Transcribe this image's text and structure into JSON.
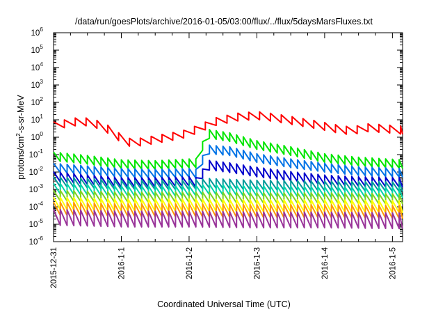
{
  "chart_data": {
    "type": "line",
    "title": "/data/run/goesPlots/archive/2016-01-05/03:00/flux/../flux/5daysMarsFluxes.txt",
    "xlabel": "Coordinated Universal Time (UTC)",
    "ylabel_pre": "protons/cm",
    "ylabel_sup": "2",
    "ylabel_post": "-s-sr-MeV",
    "yscale": "log",
    "ylim_exp": [
      -6,
      6
    ],
    "ytick_base": "10",
    "xlim_days": [
      0,
      5.15
    ],
    "xticks": [
      {
        "label": "2015-12-31",
        "day": 0
      },
      {
        "label": "2016-1-1",
        "day": 1
      },
      {
        "label": "2016-1-2",
        "day": 2
      },
      {
        "label": "2016-1-3",
        "day": 3
      },
      {
        "label": "2016-1-4",
        "day": 4
      },
      {
        "label": "2016-1-5",
        "day": 5
      }
    ],
    "grid": false,
    "legend": "none",
    "series": [
      {
        "color": "#ff0000",
        "period": 0.16,
        "amp": 0.45,
        "env": [
          [
            0,
            0.66
          ],
          [
            0.38,
            0.92
          ],
          [
            0.55,
            0.85
          ],
          [
            0.75,
            0.6
          ],
          [
            0.95,
            0.05
          ],
          [
            1.15,
            -0.35
          ],
          [
            1.4,
            -0.2
          ],
          [
            1.7,
            0
          ],
          [
            1.95,
            0.2
          ],
          [
            2.15,
            0.5
          ],
          [
            2.4,
            0.9
          ],
          [
            2.7,
            1.15
          ],
          [
            3.0,
            1.25
          ],
          [
            3.3,
            1.1
          ],
          [
            3.6,
            0.9
          ],
          [
            3.9,
            0.7
          ],
          [
            4.15,
            0.5
          ],
          [
            4.4,
            0.35
          ],
          [
            4.6,
            0.55
          ],
          [
            4.85,
            0.5
          ],
          [
            5.15,
            0.4
          ]
        ]
      },
      {
        "color": "#00e600",
        "period": 0.1,
        "amp": 0.5,
        "env": [
          [
            0,
            -1.1
          ],
          [
            0.5,
            -1.3
          ],
          [
            1.0,
            -1.55
          ],
          [
            1.5,
            -1.6
          ],
          [
            2.0,
            -1.5
          ],
          [
            2.1,
            -1.5
          ],
          [
            2.2,
            -0.5
          ],
          [
            2.28,
            0.2
          ],
          [
            2.6,
            0
          ],
          [
            3.0,
            -0.45
          ],
          [
            3.5,
            -0.8
          ],
          [
            4.0,
            -1.2
          ],
          [
            4.5,
            -1.4
          ],
          [
            5.15,
            -1.55
          ]
        ]
      },
      {
        "color": "#0073e6",
        "period": 0.1,
        "amp": 0.5,
        "env": [
          [
            0,
            -1.75
          ],
          [
            0.5,
            -1.9
          ],
          [
            1.0,
            -2.05
          ],
          [
            1.5,
            -2.1
          ],
          [
            2.0,
            -2.05
          ],
          [
            2.1,
            -2.1
          ],
          [
            2.2,
            -1.3
          ],
          [
            2.28,
            -0.7
          ],
          [
            2.6,
            -0.8
          ],
          [
            3.0,
            -1.2
          ],
          [
            3.5,
            -1.5
          ],
          [
            4.0,
            -1.75
          ],
          [
            4.5,
            -1.95
          ],
          [
            5.15,
            -2.05
          ]
        ]
      },
      {
        "color": "#0000cc",
        "period": 0.1,
        "amp": 0.55,
        "env": [
          [
            0,
            -2.25
          ],
          [
            0.5,
            -2.45
          ],
          [
            1.0,
            -2.6
          ],
          [
            1.5,
            -2.6
          ],
          [
            2.0,
            -2.55
          ],
          [
            2.1,
            -2.6
          ],
          [
            2.2,
            -2.1
          ],
          [
            2.28,
            -1.6
          ],
          [
            2.6,
            -1.75
          ],
          [
            3.0,
            -2.0
          ],
          [
            3.5,
            -2.25
          ],
          [
            4.0,
            -2.45
          ],
          [
            4.5,
            -2.55
          ],
          [
            5.15,
            -2.6
          ]
        ]
      },
      {
        "color": "#009999",
        "period": 0.1,
        "amp": 0.55,
        "env": [
          [
            0,
            -2.55
          ],
          [
            1.0,
            -2.75
          ],
          [
            2.0,
            -2.75
          ],
          [
            2.3,
            -2.65
          ],
          [
            3.0,
            -2.75
          ],
          [
            4.0,
            -2.8
          ],
          [
            5.15,
            -2.85
          ]
        ]
      },
      {
        "color": "#00d4aa",
        "period": 0.1,
        "amp": 0.6,
        "env": [
          [
            0,
            -2.95
          ],
          [
            1.0,
            -3.1
          ],
          [
            2.0,
            -3.1
          ],
          [
            2.3,
            -3.0
          ],
          [
            3.0,
            -3.1
          ],
          [
            4.0,
            -3.15
          ],
          [
            5.15,
            -3.2
          ]
        ]
      },
      {
        "color": "#7ed321",
        "period": 0.1,
        "amp": 0.6,
        "env": [
          [
            0,
            -3.35
          ],
          [
            1.0,
            -3.45
          ],
          [
            2.0,
            -3.45
          ],
          [
            3.0,
            -3.5
          ],
          [
            4.0,
            -3.5
          ],
          [
            5.15,
            -3.55
          ]
        ]
      },
      {
        "color": "#ffff00",
        "period": 0.1,
        "amp": 0.7,
        "env": [
          [
            0,
            -3.8
          ],
          [
            1.0,
            -3.9
          ],
          [
            2.0,
            -3.9
          ],
          [
            3.0,
            -3.95
          ],
          [
            4.0,
            -3.95
          ],
          [
            5.15,
            -4.0
          ]
        ]
      },
      {
        "color": "#ff9900",
        "period": 0.1,
        "amp": 0.75,
        "env": [
          [
            0,
            -4.1
          ],
          [
            1.0,
            -4.2
          ],
          [
            2.0,
            -4.2
          ],
          [
            3.0,
            -4.25
          ],
          [
            4.0,
            -4.25
          ],
          [
            5.15,
            -4.3
          ]
        ]
      },
      {
        "color": "#993399",
        "period": 0.1,
        "amp": 0.9,
        "env": [
          [
            0,
            -4.6
          ],
          [
            1.0,
            -4.7
          ],
          [
            2.0,
            -4.7
          ],
          [
            3.0,
            -4.75
          ],
          [
            4.0,
            -4.75
          ],
          [
            5.15,
            -4.8
          ]
        ]
      }
    ]
  }
}
